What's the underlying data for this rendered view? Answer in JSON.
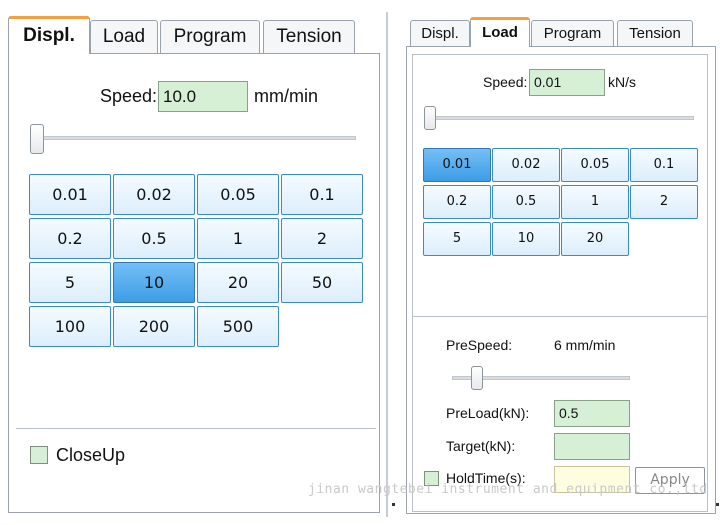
{
  "left": {
    "tabs": [
      {
        "label": "Displ.",
        "active": true
      },
      {
        "label": "Load",
        "active": false
      },
      {
        "label": "Program",
        "active": false
      },
      {
        "label": "Tension",
        "active": false
      }
    ],
    "speed": {
      "label": "Speed:",
      "value": "10.0",
      "unit": "mm/min"
    },
    "slider_level": 0.0,
    "presets": [
      "0.01",
      "0.02",
      "0.05",
      "0.1",
      "0.2",
      "0.5",
      "1",
      "2",
      "5",
      "10",
      "20",
      "50",
      "100",
      "200",
      "500"
    ],
    "selected_preset": "10",
    "closeup": {
      "label": "CloseUp",
      "checked": false
    }
  },
  "right": {
    "tabs": [
      {
        "label": "Displ.",
        "active": false
      },
      {
        "label": "Load",
        "active": true
      },
      {
        "label": "Program",
        "active": false
      },
      {
        "label": "Tension",
        "active": false
      }
    ],
    "speed": {
      "label": "Speed:",
      "value": "0.01",
      "unit": "kN/s"
    },
    "slider_level": 0.0,
    "presets": [
      "0.01",
      "0.02",
      "0.05",
      "0.1",
      "0.2",
      "0.5",
      "1",
      "2",
      "5",
      "10",
      "20"
    ],
    "selected_preset": "0.01",
    "prespeed": {
      "label": "PreSpeed:",
      "value": "6 mm/min",
      "slider_level": 0.1
    },
    "preload": {
      "label": "PreLoad(kN):",
      "value": "0.5"
    },
    "target": {
      "label": "Target(kN):",
      "value": ""
    },
    "holdtime": {
      "label": "HoldTime(s):",
      "value": "",
      "checked": false
    },
    "apply_label": "Apply"
  },
  "watermark": "jinan wangtebei instrument and equipment co.,ltd",
  "colors": {
    "selected_button": "#3d9de6",
    "field_green": "#d6f0d6",
    "field_yellow": "#fffde0",
    "tab_accent": "#f2a040"
  }
}
